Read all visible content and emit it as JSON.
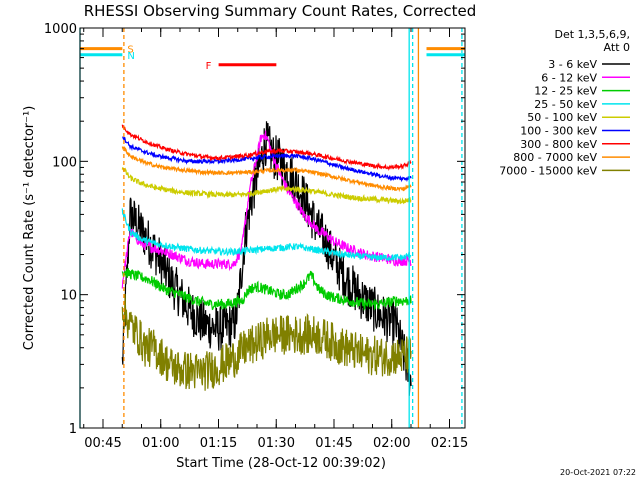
{
  "chart_data": {
    "type": "line",
    "title": "RHESSI Observing Summary Count Rates, Corrected",
    "xlabel": "Start Time (28-Oct-12 00:39:02)",
    "ylabel": "Corrected Count Rate (s⁻¹ detector⁻¹)",
    "yscale": "log",
    "ylim": [
      1,
      1000
    ],
    "xlim_minutes": [
      0,
      100
    ],
    "x_tick_labels": [
      "00:45",
      "01:00",
      "01:15",
      "01:30",
      "01:45",
      "02:00",
      "02:15"
    ],
    "x_ticks_minutes": [
      5.97,
      20.97,
      35.97,
      50.97,
      65.97,
      80.97,
      95.97
    ],
    "y_tick_labels": [
      "1",
      "10",
      "100",
      "1000"
    ],
    "y_ticks": [
      1,
      10,
      100,
      1000
    ],
    "grid": false,
    "legend_position": "right",
    "legend_header": [
      "Det 1,3,5,6,9,",
      "Att 0"
    ],
    "footer_date": "20-Oct-2021 07:22",
    "annotations": [
      {
        "label": "S",
        "color": "#ff8c00",
        "x_start": 0,
        "x_end": 11,
        "y": 700
      },
      {
        "label": "N",
        "color": "#00e5ee",
        "x_start": 0,
        "x_end": 11,
        "y": 630
      },
      {
        "label": "F",
        "color": "#ff0000",
        "x_start": 36,
        "x_end": 51,
        "y": 530
      },
      {
        "label": "",
        "color": "#ff8c00",
        "x_start": 90,
        "x_end": 100,
        "y": 700
      },
      {
        "label": "",
        "color": "#00e5ee",
        "x_start": 90,
        "x_end": 100,
        "y": 630
      }
    ],
    "vertical_lines": [
      {
        "color": "#00e5ee",
        "x": 0,
        "style": "solid"
      },
      {
        "color": "#ff8c00",
        "x": 11.4,
        "style": "dashed"
      },
      {
        "color": "#00e5ee",
        "x": 85.5,
        "style": "solid"
      },
      {
        "color": "#00e5ee",
        "x": 86.4,
        "style": "dashed"
      },
      {
        "color": "#ff8c00",
        "x": 87.9,
        "style": "solid"
      },
      {
        "color": "#00e5ee",
        "x": 99.2,
        "style": "dashed"
      }
    ],
    "series": [
      {
        "name": "3 - 6 keV",
        "color": "#000000",
        "x": [
          11,
          13,
          16,
          20,
          24,
          28,
          32,
          36,
          40,
          41,
          43,
          45,
          47,
          48,
          49,
          50,
          52,
          54,
          56,
          58,
          60,
          62,
          64,
          66,
          70,
          74,
          78,
          82,
          86
        ],
        "y": [
          3,
          40,
          30,
          20,
          12,
          8,
          6,
          5.5,
          6,
          8,
          30,
          60,
          100,
          140,
          130,
          110,
          100,
          85,
          70,
          55,
          40,
          30,
          25,
          18,
          12,
          9,
          7,
          6,
          2.2
        ]
      },
      {
        "name": "6 - 12 keV",
        "color": "#ff00ff",
        "x": [
          11,
          13,
          16,
          20,
          24,
          28,
          32,
          36,
          40,
          42,
          44,
          46,
          47,
          48,
          49,
          50,
          52,
          54,
          56,
          58,
          60,
          62,
          64,
          66,
          70,
          74,
          78,
          82,
          86
        ],
        "y": [
          12,
          30,
          24,
          22,
          20,
          18,
          17,
          17,
          17,
          22,
          60,
          110,
          150,
          160,
          140,
          110,
          80,
          60,
          50,
          40,
          35,
          30,
          28,
          25,
          22,
          20,
          19,
          18,
          18
        ]
      },
      {
        "name": "12 - 25 keV",
        "color": "#00cc00",
        "x": [
          11,
          14,
          18,
          22,
          26,
          30,
          34,
          38,
          42,
          44,
          46,
          48,
          50,
          52,
          54,
          56,
          58,
          60,
          62,
          64,
          66,
          70,
          74,
          78,
          82,
          86
        ],
        "y": [
          15,
          14,
          13,
          11,
          10,
          9,
          8.5,
          8.5,
          9,
          11,
          11.5,
          11,
          10.5,
          10,
          10,
          11,
          12,
          14,
          11,
          10,
          9.5,
          9,
          8.5,
          8.5,
          9,
          9
        ]
      },
      {
        "name": "25 - 50 keV",
        "color": "#00e5ee",
        "x": [
          11,
          13,
          16,
          20,
          24,
          28,
          32,
          36,
          40,
          44,
          48,
          52,
          56,
          60,
          64,
          68,
          72,
          76,
          80,
          84,
          86
        ],
        "y": [
          42,
          30,
          26,
          24,
          23,
          22,
          21.5,
          21,
          21,
          21.5,
          22,
          22.5,
          23,
          22,
          21,
          20,
          19.5,
          19,
          19,
          19,
          20
        ]
      },
      {
        "name": "50 - 100 keV",
        "color": "#cccc00",
        "x": [
          11,
          13,
          16,
          20,
          24,
          28,
          32,
          36,
          40,
          44,
          48,
          52,
          56,
          60,
          64,
          68,
          72,
          76,
          80,
          84,
          86
        ],
        "y": [
          90,
          75,
          68,
          63,
          60,
          58,
          57,
          56,
          56,
          57,
          60,
          62,
          62,
          60,
          57,
          55,
          53,
          52,
          51,
          50,
          52
        ]
      },
      {
        "name": "100 - 300 keV",
        "color": "#0000ff",
        "x": [
          11,
          13,
          16,
          20,
          24,
          28,
          32,
          36,
          40,
          44,
          48,
          52,
          56,
          60,
          64,
          68,
          72,
          76,
          80,
          84,
          86
        ],
        "y": [
          155,
          130,
          120,
          110,
          105,
          100,
          100,
          100,
          102,
          105,
          108,
          110,
          110,
          105,
          98,
          90,
          85,
          80,
          76,
          74,
          76
        ]
      },
      {
        "name": "300 - 800 keV",
        "color": "#ff0000",
        "x": [
          11,
          13,
          16,
          20,
          24,
          28,
          32,
          36,
          40,
          44,
          48,
          52,
          56,
          60,
          64,
          68,
          72,
          76,
          80,
          84,
          86
        ],
        "y": [
          185,
          160,
          145,
          130,
          120,
          113,
          108,
          106,
          108,
          112,
          118,
          120,
          118,
          114,
          108,
          102,
          97,
          93,
          90,
          92,
          100
        ]
      },
      {
        "name": "800 - 7000 keV",
        "color": "#ff8c00",
        "x": [
          11,
          13,
          16,
          20,
          24,
          28,
          32,
          36,
          40,
          44,
          48,
          52,
          56,
          60,
          64,
          68,
          72,
          76,
          80,
          84,
          86
        ],
        "y": [
          130,
          110,
          100,
          92,
          88,
          85,
          83,
          82,
          82,
          83,
          85,
          86,
          86,
          83,
          79,
          74,
          70,
          66,
          63,
          62,
          66
        ]
      },
      {
        "name": "7000 - 15000 keV",
        "color": "#808000",
        "x": [
          11,
          13,
          15,
          17,
          19,
          21,
          23,
          25,
          27,
          29,
          31,
          33,
          35,
          37,
          39,
          41,
          43,
          45,
          47,
          49,
          51,
          53,
          55,
          57,
          59,
          61,
          63,
          65,
          67,
          69,
          71,
          73,
          75,
          77,
          79,
          81,
          83,
          85,
          86
        ],
        "y": [
          8,
          6,
          5,
          4,
          4,
          3.5,
          3,
          2.8,
          2.7,
          2.7,
          2.6,
          2.7,
          2.8,
          3,
          3.2,
          3.5,
          4,
          4.2,
          4.5,
          5,
          5,
          5,
          5,
          5,
          5,
          5,
          4.8,
          4.5,
          4.2,
          4,
          3.8,
          3.6,
          3.5,
          3.5,
          3.4,
          3.5,
          3.4,
          3.5,
          3.6
        ]
      }
    ]
  }
}
